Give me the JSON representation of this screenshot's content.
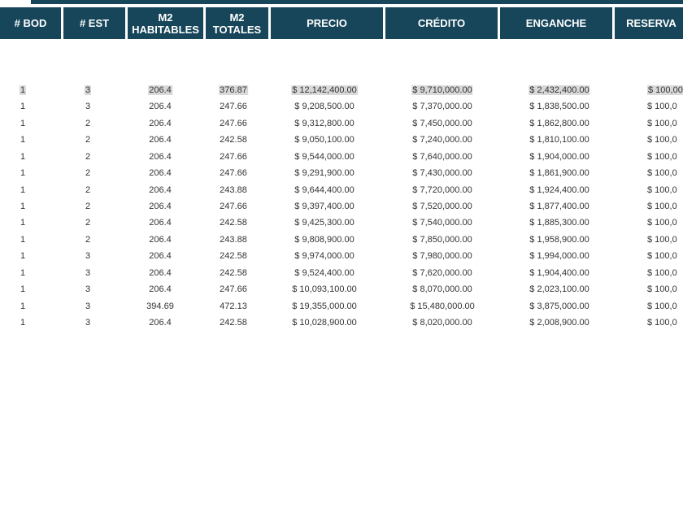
{
  "table": {
    "header": [
      "# BOD",
      "# EST",
      "M2\nHABITABLES",
      "M2\nTOTALES",
      "PRECIO",
      "CRÉDITO",
      "ENGANCHE",
      "RESERVA"
    ],
    "rows": [
      [
        "1",
        "3",
        "206.4",
        "376.87",
        "$ 12,142,400.00",
        "$ 9,710,000.00",
        "$ 2,432,400.00",
        "$ 100,00"
      ],
      [
        "1",
        "3",
        "206.4",
        "247.66",
        "$ 9,208,500.00",
        "$ 7,370,000.00",
        "$ 1,838,500.00",
        "$ 100,0"
      ],
      [
        "1",
        "2",
        "206.4",
        "247.66",
        "$ 9,312,800.00",
        "$ 7,450,000.00",
        "$ 1,862,800.00",
        "$ 100,0"
      ],
      [
        "1",
        "2",
        "206.4",
        "242.58",
        "$ 9,050,100.00",
        "$ 7,240,000.00",
        "$ 1,810,100.00",
        "$ 100,0"
      ],
      [
        "1",
        "2",
        "206.4",
        "247.66",
        "$ 9,544,000.00",
        "$ 7,640,000.00",
        "$ 1,904,000.00",
        "$ 100,0"
      ],
      [
        "1",
        "2",
        "206.4",
        "247.66",
        "$ 9,291,900.00",
        "$ 7,430,000.00",
        "$ 1,861,900.00",
        "$ 100,0"
      ],
      [
        "1",
        "2",
        "206.4",
        "243.88",
        "$ 9,644,400.00",
        "$ 7,720,000.00",
        "$ 1,924,400.00",
        "$ 100,0"
      ],
      [
        "1",
        "2",
        "206.4",
        "247.66",
        "$ 9,397,400.00",
        "$ 7,520,000.00",
        "$ 1,877,400.00",
        "$ 100,0"
      ],
      [
        "1",
        "2",
        "206.4",
        "242.58",
        "$ 9,425,300.00",
        "$ 7,540,000.00",
        "$ 1,885,300.00",
        "$ 100,0"
      ],
      [
        "1",
        "2",
        "206.4",
        "243.88",
        "$ 9,808,900.00",
        "$ 7,850,000.00",
        "$ 1,958,900.00",
        "$ 100,0"
      ],
      [
        "1",
        "3",
        "206.4",
        "242.58",
        "$ 9,974,000.00",
        "$ 7,980,000.00",
        "$ 1,994,000.00",
        "$ 100,0"
      ],
      [
        "1",
        "3",
        "206.4",
        "242.58",
        "$ 9,524,400.00",
        "$ 7,620,000.00",
        "$ 1,904,400.00",
        "$ 100,0"
      ],
      [
        "1",
        "3",
        "206.4",
        "247.66",
        "$ 10,093,100.00",
        "$ 8,070,000.00",
        "$ 2,023,100.00",
        "$ 100,0"
      ],
      [
        "1",
        "3",
        "394.69",
        "472.13",
        "$ 19,355,000.00",
        "$ 15,480,000.00",
        "$ 3,875,000.00",
        "$ 100,0"
      ],
      [
        "1",
        "3",
        "206.4",
        "242.58",
        "$ 10,028,900.00",
        "$ 8,020,000.00",
        "$ 2,008,900.00",
        "$ 100,0"
      ]
    ]
  }
}
